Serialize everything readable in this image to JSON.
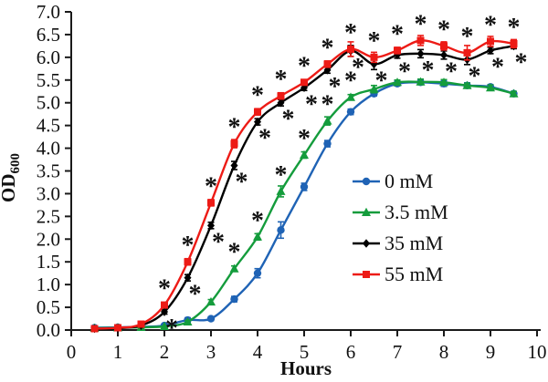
{
  "figure": {
    "background": "#ffffff",
    "axis_color": "#1a1a1a"
  },
  "chart_data": {
    "type": "line",
    "title": "",
    "xlabel": "Hours",
    "ylabel": "OD",
    "ylabel_subscript": "600",
    "xlim": [
      0,
      10
    ],
    "ylim": [
      0,
      7
    ],
    "grid": false,
    "legend_position": "middle-right",
    "x_ticks": [
      0,
      1,
      2,
      3,
      4,
      5,
      6,
      7,
      8,
      9,
      10
    ],
    "x_tick_labels": [
      "0",
      "1",
      "2",
      "3",
      "4",
      "5",
      "6",
      "7",
      "8",
      "9",
      "10"
    ],
    "y_ticks": [
      0,
      0.5,
      1,
      1.5,
      2,
      2.5,
      3,
      3.5,
      4,
      4.5,
      5,
      5.5,
      6,
      6.5,
      7
    ],
    "y_tick_labels": [
      "0.0",
      "0.5",
      "1.0",
      "1.5",
      "2.0",
      "2.5",
      "3.0",
      "3.5",
      "4.0",
      "4.5",
      "5.0",
      "5.5",
      "6.0",
      "6.5",
      "7.0"
    ],
    "annotation_glyph": "*",
    "x": [
      0.5,
      1,
      1.5,
      2,
      2.5,
      3,
      3.5,
      4,
      4.5,
      5,
      5.5,
      6,
      6.5,
      7,
      7.5,
      8,
      8.5,
      9,
      9.5
    ],
    "series": [
      {
        "name": "0 mM",
        "color": "#1f63b5",
        "marker": "circle",
        "asterisk_side": "above",
        "values": [
          0.05,
          0.06,
          0.07,
          0.1,
          0.22,
          0.25,
          0.68,
          1.25,
          2.2,
          3.15,
          4.1,
          4.8,
          5.2,
          5.42,
          5.45,
          5.42,
          5.38,
          5.35,
          5.2
        ],
        "errors": [
          0,
          0,
          0,
          0,
          0.05,
          0.04,
          0.06,
          0.1,
          0.18,
          0.08,
          0.07,
          0.06,
          0.05,
          0.05,
          0.05,
          0.06,
          0.06,
          0.05,
          0.05
        ],
        "asterisk_times": []
      },
      {
        "name": "3.5 mM",
        "color": "#149c3c",
        "marker": "triangle",
        "asterisk_side": "above",
        "values": [
          0.04,
          0.05,
          0.06,
          0.08,
          0.18,
          0.62,
          1.35,
          2.05,
          3.05,
          3.85,
          4.6,
          5.12,
          5.3,
          5.45,
          5.46,
          5.45,
          5.38,
          5.33,
          5.2
        ],
        "errors": [
          0,
          0,
          0,
          0,
          0.03,
          0.05,
          0.06,
          0.07,
          0.12,
          0.07,
          0.09,
          0.06,
          0.08,
          0.05,
          0.06,
          0.06,
          0.05,
          0.06,
          0.05
        ],
        "asterisk_times": [
          3.5,
          4,
          4.5,
          5,
          5.5,
          6
        ]
      },
      {
        "name": "35 mM",
        "color": "#000000",
        "marker": "diamond",
        "asterisk_side": "below",
        "values": [
          0.03,
          0.04,
          0.1,
          0.4,
          1.15,
          2.3,
          3.62,
          4.58,
          5.0,
          5.33,
          5.72,
          6.14,
          5.85,
          6.05,
          6.08,
          6.05,
          5.95,
          6.15,
          6.25
        ],
        "errors": [
          0,
          0,
          0,
          0.05,
          0.07,
          0.07,
          0.09,
          0.07,
          0.07,
          0.06,
          0.07,
          0.12,
          0.12,
          0.07,
          0.09,
          0.09,
          0.11,
          0.07,
          0.06
        ],
        "asterisk_times": [
          2,
          2.5,
          3,
          3.5,
          4,
          4.5,
          5,
          5.5,
          6,
          6.5,
          7,
          7.5,
          8,
          8.5,
          9,
          9.5
        ]
      },
      {
        "name": "55 mM",
        "color": "#ed1b16",
        "marker": "square",
        "asterisk_side": "above",
        "values": [
          0.03,
          0.05,
          0.13,
          0.55,
          1.5,
          2.8,
          4.1,
          4.8,
          5.15,
          5.45,
          5.85,
          6.18,
          6.0,
          6.15,
          6.37,
          6.25,
          6.1,
          6.35,
          6.3
        ],
        "errors": [
          0,
          0,
          0,
          0.05,
          0.07,
          0.07,
          0.09,
          0.07,
          0.07,
          0.06,
          0.07,
          0.16,
          0.11,
          0.07,
          0.11,
          0.09,
          0.16,
          0.11,
          0.09
        ],
        "asterisk_times": [
          2,
          2.5,
          3,
          3.5,
          4,
          4.5,
          5,
          5.5,
          6,
          6.5,
          7,
          7.5,
          8,
          8.5,
          9,
          9.5
        ]
      }
    ]
  }
}
